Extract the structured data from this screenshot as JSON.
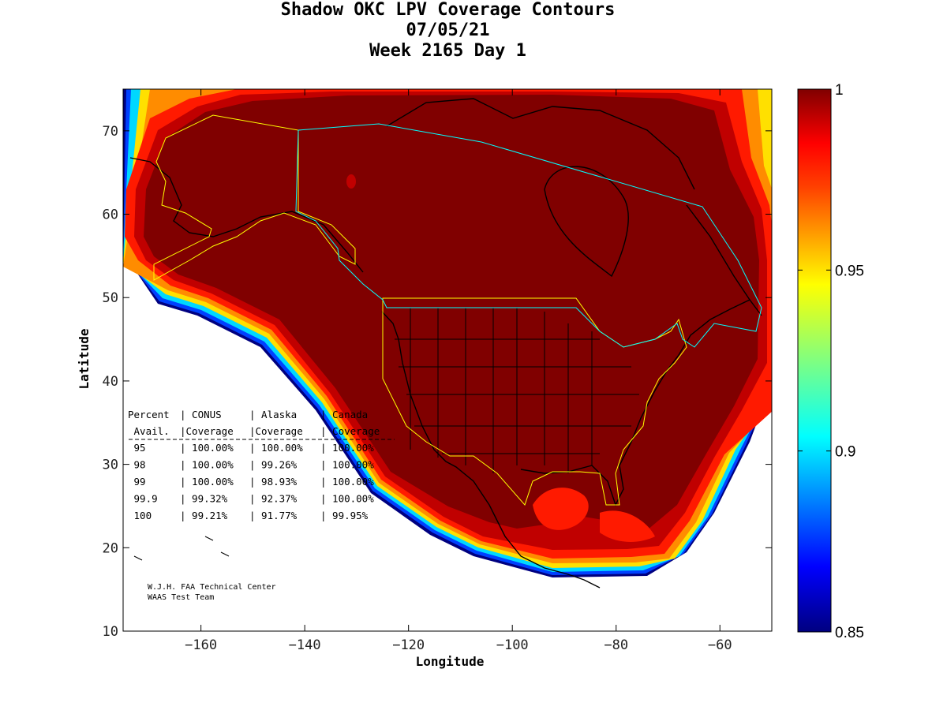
{
  "header": {
    "title": "Shadow OKC LPV Coverage Contours",
    "date": "07/05/21",
    "week": "Week 2165 Day 1"
  },
  "chart_data": {
    "type": "heatmap",
    "title": "Shadow OKC LPV Coverage Contours",
    "subtitle": [
      "07/05/21",
      "Week 2165 Day 1"
    ],
    "xlabel": "Longitude",
    "ylabel": "Latitude",
    "xlim": [
      -175,
      -50
    ],
    "ylim": [
      10,
      75
    ],
    "x_ticks": [
      -160,
      -140,
      -120,
      -100,
      -80,
      -60
    ],
    "y_ticks": [
      10,
      20,
      30,
      40,
      50,
      60,
      70
    ],
    "colorbar": {
      "range": [
        0.85,
        1
      ],
      "ticks": [
        "1",
        "0.95",
        "0.9",
        "0.85"
      ],
      "tick_values": [
        1,
        0.95,
        0.9,
        0.85
      ],
      "colormap": "jet"
    },
    "coverage_table": {
      "headers": [
        "Percent",
        "CONUS",
        "Alaska",
        "Canada"
      ],
      "subheaders": [
        "Avail.",
        "Coverage",
        "Coverage",
        "Coverage"
      ],
      "rows": [
        {
          "avail": "95",
          "conus": "100.00%",
          "alaska": "100.00%",
          "canada": "100.00%"
        },
        {
          "avail": "98",
          "conus": "100.00%",
          "alaska": "99.26%",
          "canada": "100.00%"
        },
        {
          "avail": "99",
          "conus": "100.00%",
          "alaska": "98.93%",
          "canada": "100.00%"
        },
        {
          "avail": "99.9",
          "conus": "99.32%",
          "alaska": "92.37%",
          "canada": "100.00%"
        },
        {
          "avail": "100",
          "conus": "99.21%",
          "alaska": "91.77%",
          "canada": "99.95%"
        }
      ]
    },
    "credits": [
      "W.J.H. FAA Technical Center",
      "WAAS Test Team"
    ]
  },
  "colors": {
    "core": "#800000",
    "inner_red": "#b30000",
    "red": "#ff1a00",
    "orange": "#ff8000",
    "yellow": "#ffd700",
    "cyan": "#00e0ff",
    "blue": "#0040ff",
    "navy": "#000080",
    "region_outline_us": "#ffff00",
    "region_outline_canada": "#00ffff"
  }
}
